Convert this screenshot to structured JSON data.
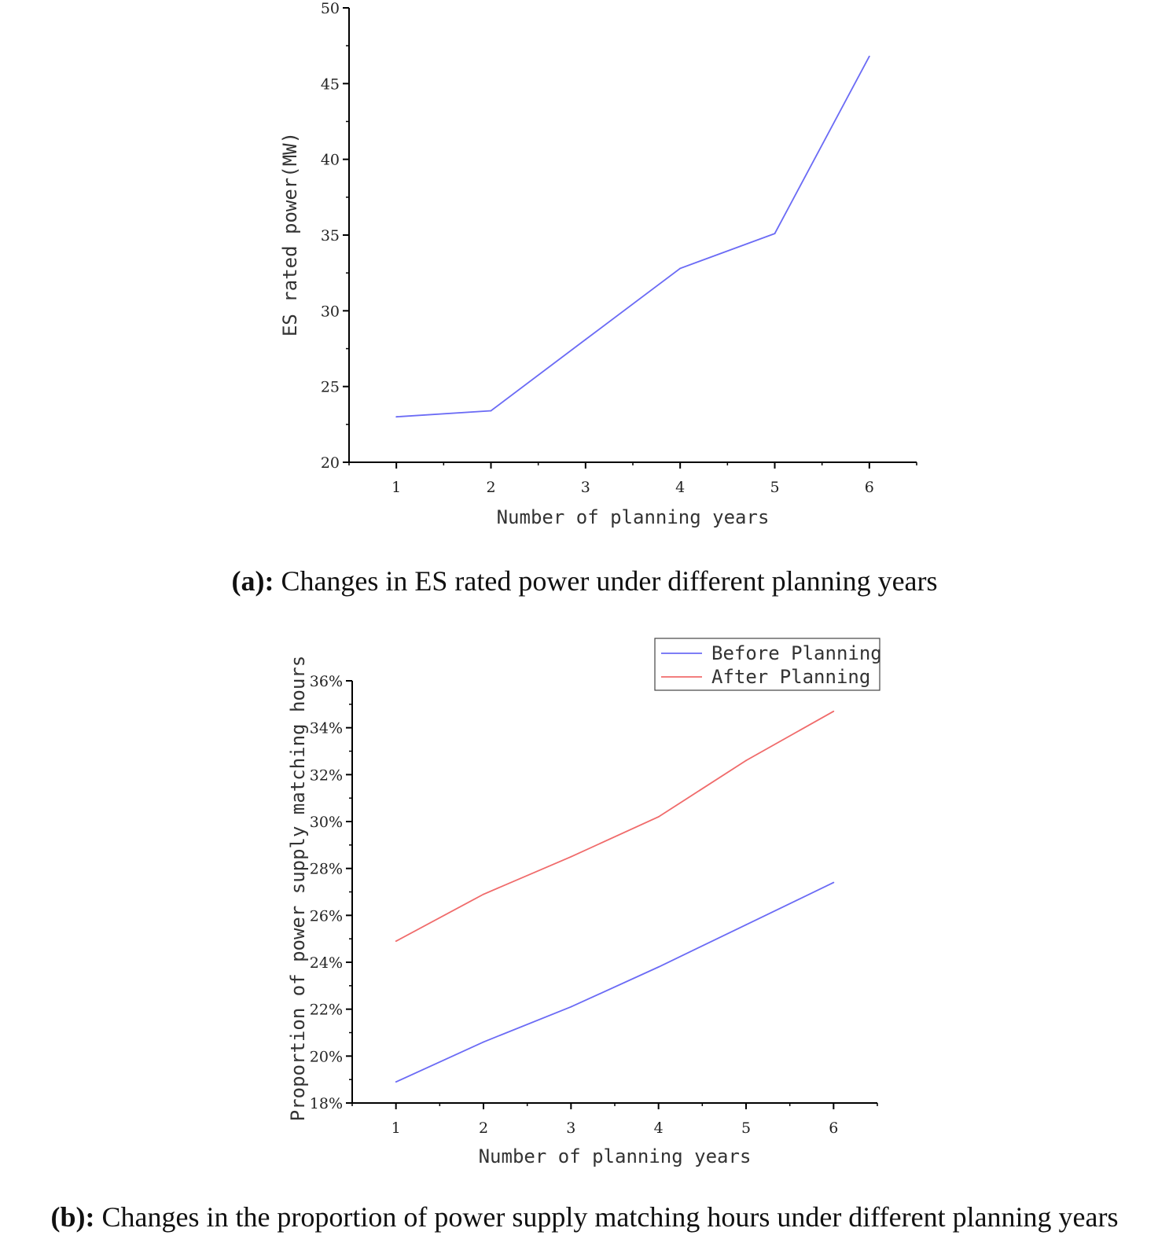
{
  "captions": {
    "a_prefix": "(a):",
    "a_text": " Changes in ES rated power under different planning years",
    "b_prefix": "(b):",
    "b_text": " Changes in the proportion of power supply matching hours under different planning years"
  },
  "chart_data": [
    {
      "type": "line",
      "title": "",
      "xlabel": "Number of planning years",
      "ylabel": "ES rated power(MW)",
      "x": [
        1,
        2,
        3,
        4,
        5,
        6
      ],
      "xlim": [
        0.5,
        6.5
      ],
      "ylim": [
        20,
        50
      ],
      "xticks": [
        "1",
        "2",
        "3",
        "4",
        "5",
        "6"
      ],
      "yticks": [
        "20",
        "25",
        "30",
        "35",
        "40",
        "45",
        "50"
      ],
      "grid": false,
      "series": [
        {
          "values": [
            23.0,
            23.4,
            28.1,
            32.8,
            35.1,
            46.8
          ],
          "color": "#6b6bf5"
        }
      ]
    },
    {
      "type": "line",
      "title": "",
      "xlabel": "Number of planning years",
      "ylabel": "Proportion of power supply matching hours",
      "x": [
        1,
        2,
        3,
        4,
        5,
        6
      ],
      "xlim": [
        0.5,
        6.5
      ],
      "ylim": [
        18,
        36
      ],
      "xticks": [
        "1",
        "2",
        "3",
        "4",
        "5",
        "6"
      ],
      "yticks": [
        "18%",
        "20%",
        "22%",
        "24%",
        "26%",
        "28%",
        "30%",
        "32%",
        "34%",
        "36%"
      ],
      "grid": false,
      "legend_position": "top-right",
      "series": [
        {
          "name": "Before Planning",
          "values": [
            18.9,
            20.6,
            22.1,
            23.8,
            25.6,
            27.4
          ],
          "color": "#6b6bf5"
        },
        {
          "name": "After Planning",
          "values": [
            24.9,
            26.9,
            28.5,
            30.2,
            32.6,
            34.7
          ],
          "color": "#f06b6b"
        }
      ]
    }
  ]
}
